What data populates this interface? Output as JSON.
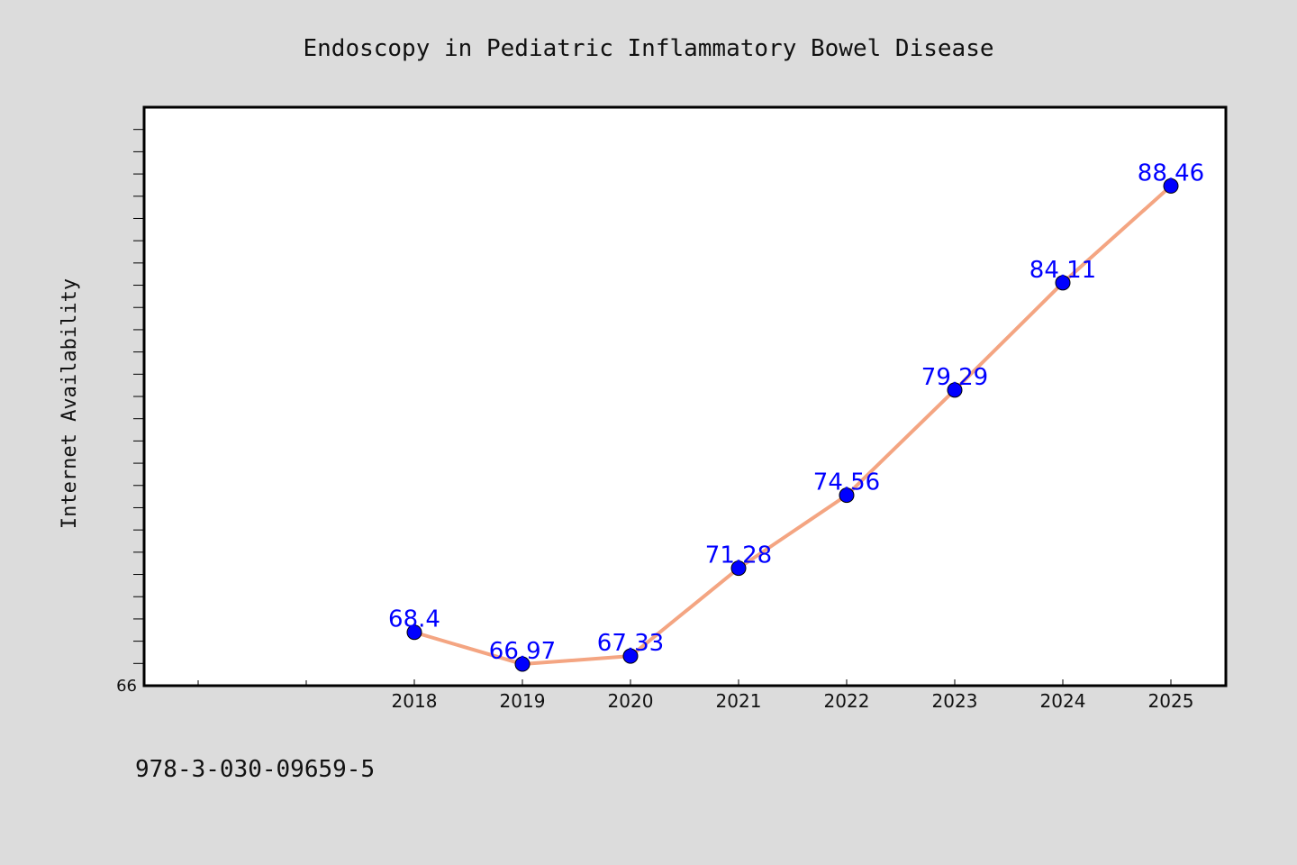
{
  "chart_data": {
    "type": "line",
    "title": "Endoscopy in Pediatric Inflammatory Bowel Disease",
    "xlabel": "",
    "ylabel": "Internet Availability",
    "x": [
      "2018",
      "2019",
      "2020",
      "2021",
      "2022",
      "2023",
      "2024",
      "2025"
    ],
    "series": [
      {
        "values": [
          68.4,
          66.97,
          67.33,
          71.28,
          74.56,
          79.29,
          84.11,
          88.46
        ]
      }
    ],
    "data_labels": [
      "68.4",
      "66.97",
      "67.33",
      "71.28",
      "74.56",
      "79.29",
      "84.11",
      "88.46"
    ],
    "y_tick_labels": [
      "66"
    ],
    "ylim": [
      66,
      92
    ],
    "grid": false,
    "legend": "none",
    "colors": {
      "line": "#f4a582",
      "marker": "#0000ff",
      "label": "#0000ff",
      "background": "#dcdcdc",
      "plot_background": "#ffffff"
    }
  },
  "footer_text": "978-3-030-09659-5"
}
